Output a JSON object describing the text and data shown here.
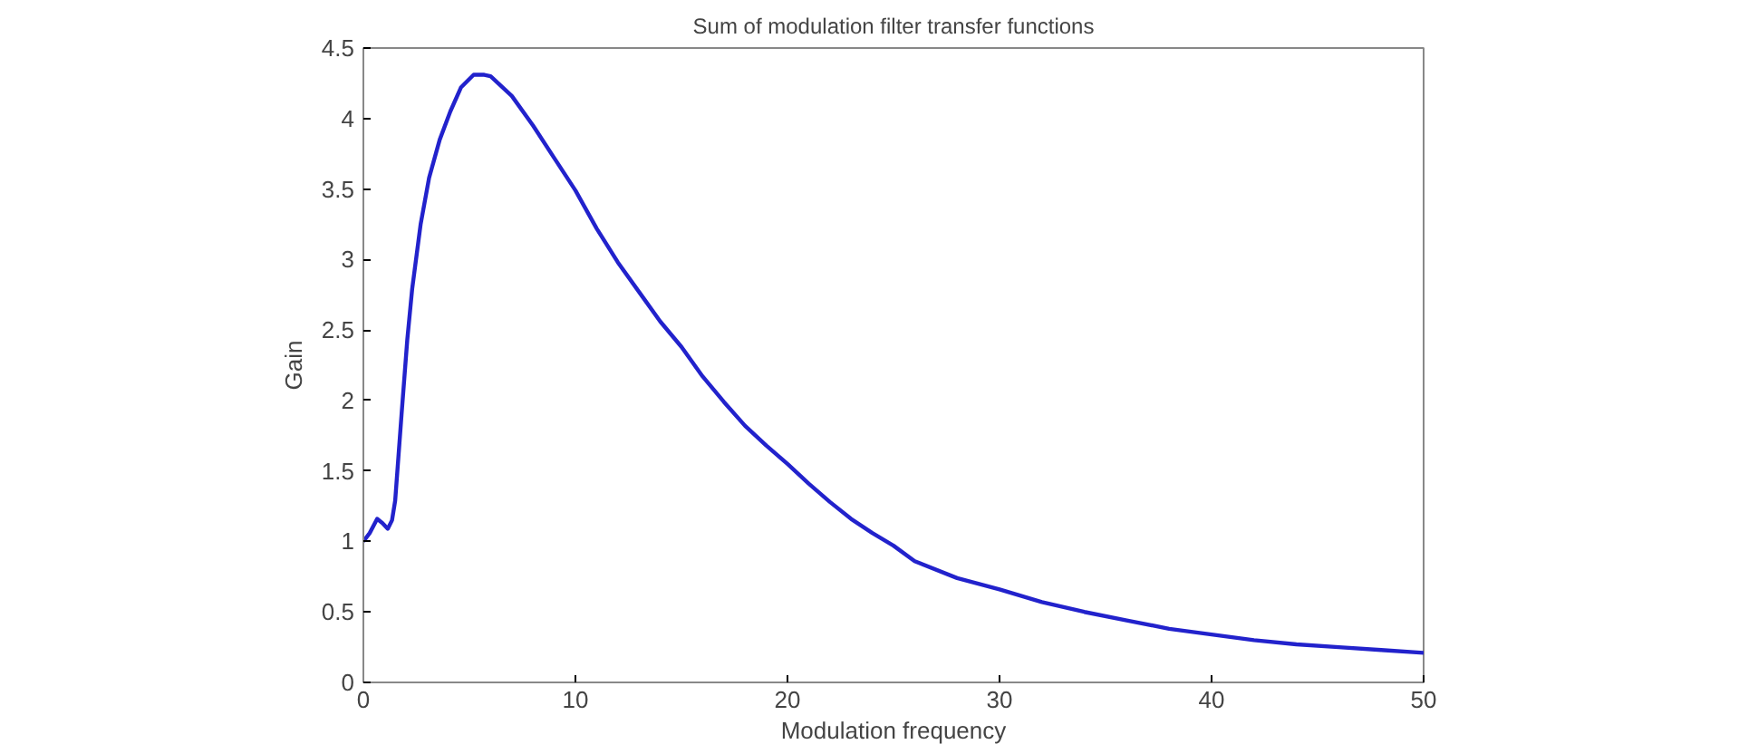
{
  "chart_data": {
    "type": "line",
    "title": "Sum of modulation filter transfer functions",
    "xlabel": "Modulation frequency",
    "ylabel": "Gain",
    "series": [
      {
        "color": "#2222cc",
        "x": [
          0,
          0.3,
          0.65,
          0.9,
          1.15,
          1.35,
          1.5,
          1.8,
          2.07,
          2.3,
          2.7,
          3.1,
          3.6,
          4.1,
          4.6,
          5.2,
          5.7,
          6,
          7,
          8,
          9,
          10,
          11,
          12,
          13,
          14,
          15,
          16,
          17,
          18,
          19,
          20,
          21,
          22,
          23,
          24,
          25,
          26,
          28,
          30,
          32,
          34,
          36,
          38,
          40,
          42,
          44,
          46,
          48,
          50
        ],
        "values": [
          1.0,
          1.06,
          1.16,
          1.13,
          1.09,
          1.15,
          1.29,
          1.9,
          2.43,
          2.79,
          3.25,
          3.58,
          3.85,
          4.05,
          4.22,
          4.31,
          4.31,
          4.3,
          4.16,
          3.95,
          3.72,
          3.49,
          3.22,
          2.98,
          2.77,
          2.56,
          2.38,
          2.17,
          1.99,
          1.82,
          1.68,
          1.55,
          1.41,
          1.28,
          1.16,
          1.06,
          0.97,
          0.86,
          0.74,
          0.66,
          0.57,
          0.5,
          0.44,
          0.38,
          0.34,
          0.3,
          0.27,
          0.25,
          0.23,
          0.21
        ]
      }
    ],
    "xlim": [
      0,
      50
    ],
    "ylim": [
      0,
      4.5
    ],
    "xticks": [
      0,
      10,
      20,
      30,
      40,
      50
    ],
    "yticks": [
      0,
      0.5,
      1,
      1.5,
      2,
      2.5,
      3,
      3.5,
      4,
      4.5
    ],
    "grid": false,
    "marker": "none",
    "line_style": "solid"
  }
}
